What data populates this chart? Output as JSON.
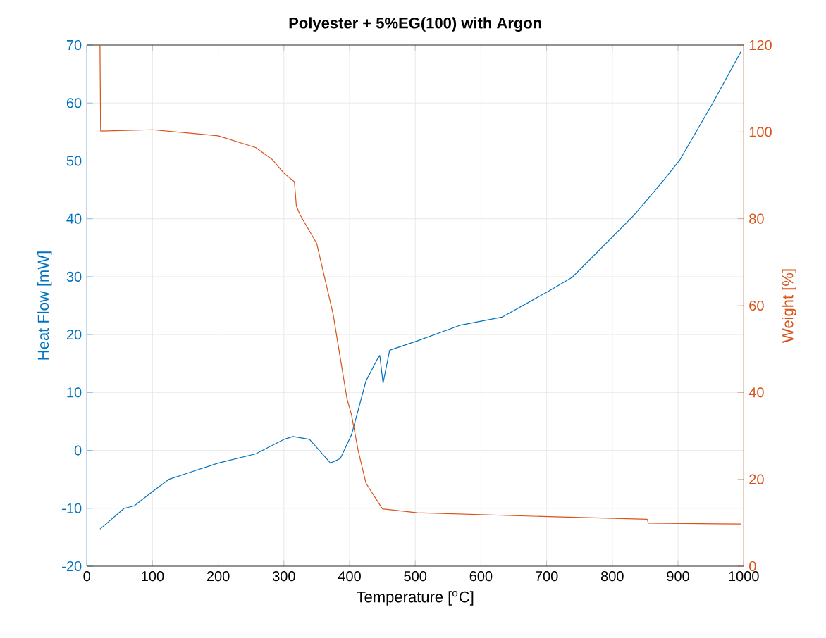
{
  "chart_data": {
    "type": "line",
    "title": "Polyester + 5%EG(100) with Argon",
    "xlabel": "Temperature [$^{o}$C]",
    "ylabel": "Heat Flow [mW]",
    "y2label": "Weight [%]",
    "xlim": [
      0,
      1000
    ],
    "xticks": [
      0,
      100,
      200,
      300,
      400,
      500,
      600,
      700,
      800,
      900,
      1000
    ],
    "ylim": [
      -20,
      70
    ],
    "yticks": [
      -20,
      -10,
      0,
      10,
      20,
      30,
      40,
      50,
      60,
      70
    ],
    "y2lim": [
      0,
      120
    ],
    "y2ticks": [
      0,
      20,
      40,
      60,
      80,
      100,
      120
    ],
    "grid": true,
    "series": [
      {
        "color": "#0072bd",
        "axis": "y",
        "x": [
          20,
          57,
          72,
          100,
          125,
          157,
          200,
          257,
          300,
          314,
          339,
          371,
          386,
          403,
          425,
          443,
          446,
          451,
          461,
          503,
          568,
          632,
          703,
          739,
          832,
          875,
          903,
          953,
          996
        ],
        "values": [
          -13.6,
          -10,
          -9.6,
          -7.1,
          -5.0,
          -3.8,
          -2.2,
          -0.6,
          1.9,
          2.4,
          1.9,
          -2.2,
          -1.4,
          2.7,
          12.0,
          15.9,
          16.4,
          11.6,
          17.3,
          18.9,
          21.6,
          23.0,
          27.5,
          29.9,
          40.5,
          46.2,
          50.2,
          60,
          68.9
        ]
      },
      {
        "color": "#d95319",
        "axis": "y2",
        "x": [
          20,
          21,
          100,
          200,
          257,
          282,
          300,
          316,
          319,
          325,
          350,
          375,
          396,
          403,
          413,
          425,
          450,
          503,
          703,
          853,
          855,
          996
        ],
        "values": [
          120,
          100.2,
          100.5,
          99.1,
          96.4,
          93.7,
          90.5,
          88.5,
          82.9,
          80.8,
          74.3,
          58,
          38.6,
          34.8,
          26.7,
          19.1,
          13.2,
          12.3,
          11.4,
          10.8,
          9.9,
          9.7
        ]
      }
    ]
  }
}
